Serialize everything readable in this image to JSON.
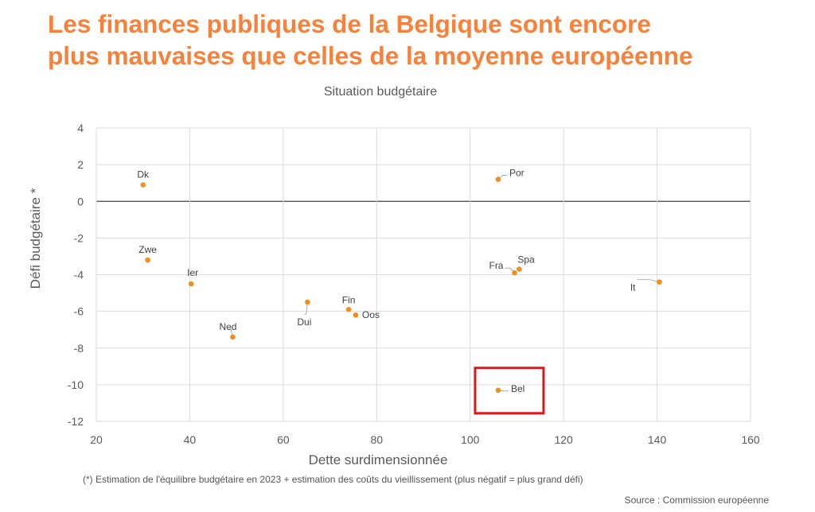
{
  "title_lines": [
    "Les finances publiques de la Belgique sont encore",
    "plus mauvaises que celles de la moyenne européenne"
  ],
  "colors": {
    "title": "#F7813A",
    "point": "#F28E1C",
    "highlight": "#E0141B",
    "grid": "#D9D9D9",
    "axis_text": "#595959"
  },
  "chart_data": {
    "type": "scatter",
    "title": "Situation budgétaire",
    "xlabel": "Dette surdimensionnée",
    "ylabel": "Défi budgétaire *",
    "xlim": [
      20,
      160
    ],
    "ylim": [
      -12,
      4
    ],
    "x_ticks": [
      20,
      40,
      60,
      80,
      100,
      120,
      140,
      160
    ],
    "y_ticks": [
      4,
      2,
      0,
      -2,
      -4,
      -6,
      -8,
      -10,
      -12
    ],
    "grid": true,
    "points": [
      {
        "label": "Dk",
        "x": 30,
        "y": 0.9
      },
      {
        "label": "Por",
        "x": 106,
        "y": 1.2
      },
      {
        "label": "Zwe",
        "x": 31,
        "y": -3.2
      },
      {
        "label": "Ier",
        "x": 40.3,
        "y": -4.5
      },
      {
        "label": "Fra",
        "x": 109.5,
        "y": -3.9
      },
      {
        "label": "Spa",
        "x": 110.5,
        "y": -3.7
      },
      {
        "label": "It",
        "x": 140.5,
        "y": -4.4
      },
      {
        "label": "Dui",
        "x": 65.2,
        "y": -5.5
      },
      {
        "label": "Fin",
        "x": 74,
        "y": -5.9
      },
      {
        "label": "Oos",
        "x": 75.5,
        "y": -6.2
      },
      {
        "label": "Ned",
        "x": 49.2,
        "y": -7.4
      },
      {
        "label": "Bel",
        "x": 106,
        "y": -10.3
      }
    ],
    "highlighted": "Bel"
  },
  "footnote": "(*) Estimation de l'équilibre budgétaire en 2023 + estimation des coûts du vieillissement (plus négatif = plus grand défi)",
  "source": "Source : Commission européenne"
}
